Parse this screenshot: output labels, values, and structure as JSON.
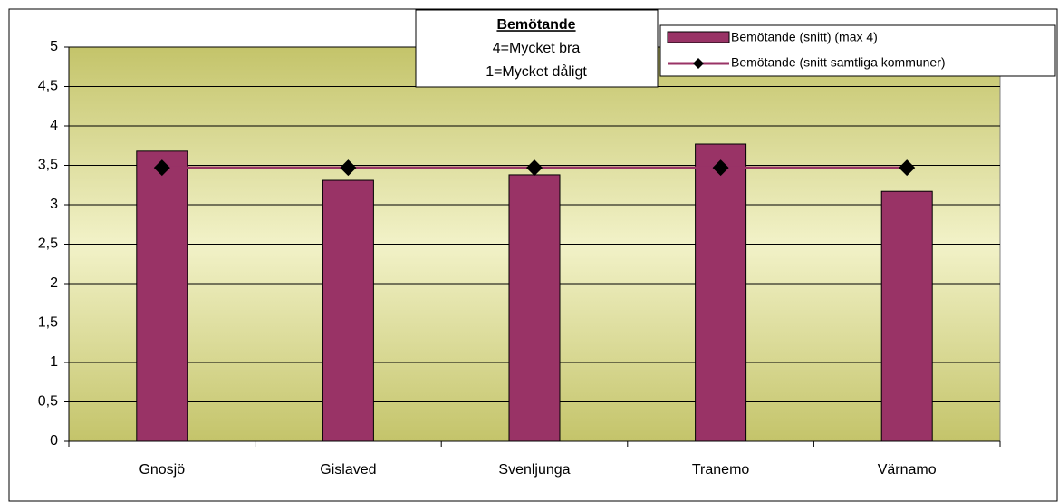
{
  "chart_data": {
    "type": "bar",
    "title": "Bemötande",
    "subtitle": [
      "4=Mycket bra",
      "1=Mycket dåligt"
    ],
    "categories": [
      "Gnosjö",
      "Gislaved",
      "Svenljunga",
      "Tranemo",
      "Värnamo"
    ],
    "series": [
      {
        "name": "Bemötande (snitt) (max 4)",
        "type": "bar",
        "color": "#993366",
        "values": [
          3.68,
          3.31,
          3.38,
          3.77,
          3.17
        ]
      },
      {
        "name": "Bemötande (snitt samtliga kommuner)",
        "type": "line",
        "color": "#993366",
        "marker_color": "#000000",
        "values": [
          3.47,
          3.47,
          3.47,
          3.47,
          3.47
        ]
      }
    ],
    "ylim": [
      0,
      5
    ],
    "yticks": [
      0,
      {
        "value": 0.5,
        "label": "0,5"
      },
      1,
      {
        "value": 1.5,
        "label": "1,5"
      },
      2,
      {
        "value": 2.5,
        "label": "2,5"
      },
      3,
      {
        "value": 3.5,
        "label": "3,5"
      },
      4,
      {
        "value": 4.5,
        "label": "4,5"
      },
      5
    ],
    "grid": true,
    "legend": "top-right"
  }
}
